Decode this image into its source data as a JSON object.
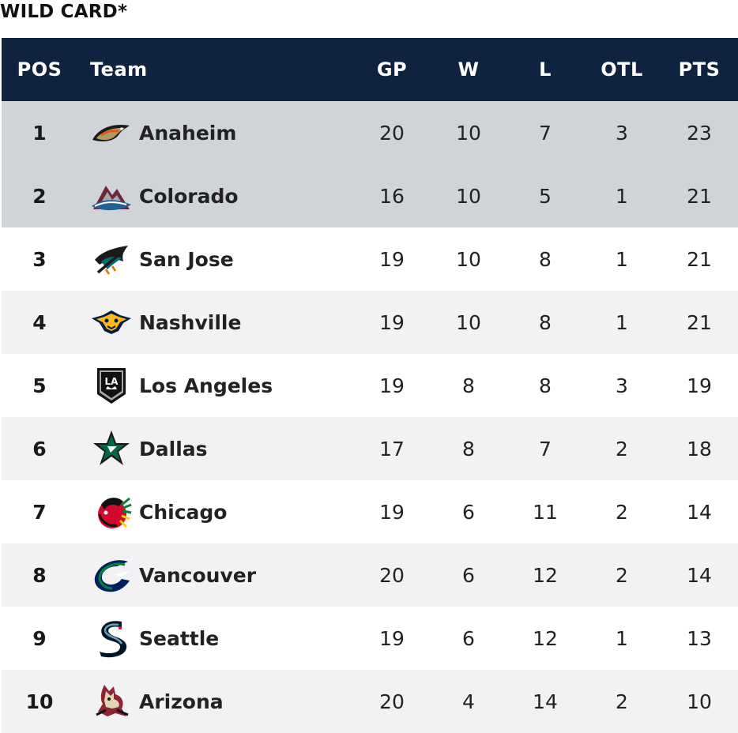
{
  "section_title": "WILD CARD*",
  "columns": {
    "pos": "POS",
    "team": "Team",
    "gp": "GP",
    "w": "W",
    "l": "L",
    "otl": "OTL",
    "pts": "PTS"
  },
  "colors": {
    "header_bg": "#0f2340",
    "playoff_row_bg": "#d0d3d8",
    "alt_row_bg": "#f2f2f4",
    "row_bg": "#ffffff"
  },
  "rows": [
    {
      "pos": "1",
      "team": "Anaheim",
      "logo": "anaheim-ducks-logo-icon",
      "gp": "20",
      "w": "10",
      "l": "7",
      "otl": "3",
      "pts": "23",
      "highlight": true
    },
    {
      "pos": "2",
      "team": "Colorado",
      "logo": "colorado-avalanche-logo-icon",
      "gp": "16",
      "w": "10",
      "l": "5",
      "otl": "1",
      "pts": "21",
      "highlight": true
    },
    {
      "pos": "3",
      "team": "San Jose",
      "logo": "san-jose-sharks-logo-icon",
      "gp": "19",
      "w": "10",
      "l": "8",
      "otl": "1",
      "pts": "21",
      "highlight": false
    },
    {
      "pos": "4",
      "team": "Nashville",
      "logo": "nashville-predators-logo-icon",
      "gp": "19",
      "w": "10",
      "l": "8",
      "otl": "1",
      "pts": "21",
      "highlight": false
    },
    {
      "pos": "5",
      "team": "Los Angeles",
      "logo": "los-angeles-kings-logo-icon",
      "gp": "19",
      "w": "8",
      "l": "8",
      "otl": "3",
      "pts": "19",
      "highlight": false
    },
    {
      "pos": "6",
      "team": "Dallas",
      "logo": "dallas-stars-logo-icon",
      "gp": "17",
      "w": "8",
      "l": "7",
      "otl": "2",
      "pts": "18",
      "highlight": false
    },
    {
      "pos": "7",
      "team": "Chicago",
      "logo": "chicago-blackhawks-logo-icon",
      "gp": "19",
      "w": "6",
      "l": "11",
      "otl": "2",
      "pts": "14",
      "highlight": false
    },
    {
      "pos": "8",
      "team": "Vancouver",
      "logo": "vancouver-canucks-logo-icon",
      "gp": "20",
      "w": "6",
      "l": "12",
      "otl": "2",
      "pts": "14",
      "highlight": false
    },
    {
      "pos": "9",
      "team": "Seattle",
      "logo": "seattle-kraken-logo-icon",
      "gp": "19",
      "w": "6",
      "l": "12",
      "otl": "1",
      "pts": "13",
      "highlight": false
    },
    {
      "pos": "10",
      "team": "Arizona",
      "logo": "arizona-coyotes-logo-icon",
      "gp": "20",
      "w": "4",
      "l": "14",
      "otl": "2",
      "pts": "10",
      "highlight": false
    }
  ]
}
